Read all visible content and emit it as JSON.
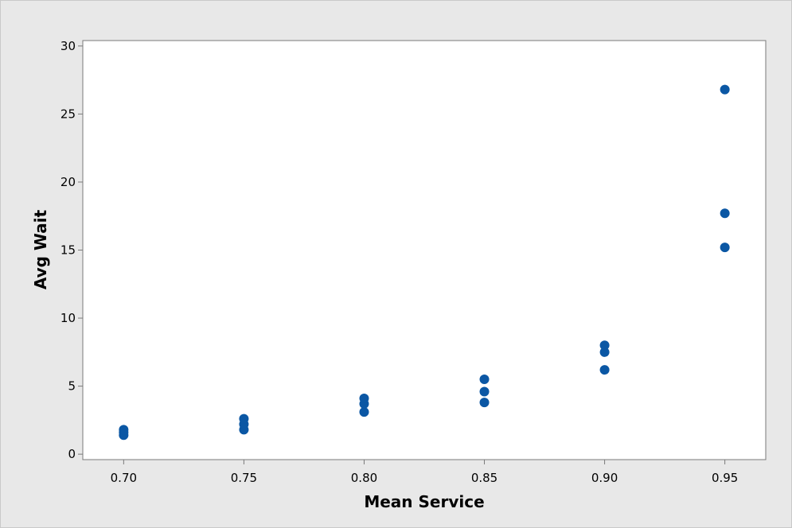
{
  "chart_data": {
    "type": "scatter",
    "title": "",
    "xlabel": "Mean Service",
    "ylabel": "Avg Wait",
    "xlim": [
      0.683,
      0.967
    ],
    "ylim": [
      -0.4,
      30.4
    ],
    "x_ticks": [
      "0.70",
      "0.75",
      "0.80",
      "0.85",
      "0.90",
      "0.95"
    ],
    "y_ticks": [
      "0",
      "5",
      "10",
      "15",
      "20",
      "25",
      "30"
    ],
    "grid": false,
    "legend": "none",
    "marker_color": "#0b57a4",
    "series": [
      {
        "points": [
          {
            "x": 0.7,
            "y": 1.4
          },
          {
            "x": 0.7,
            "y": 1.6
          },
          {
            "x": 0.7,
            "y": 1.8
          },
          {
            "x": 0.75,
            "y": 1.8
          },
          {
            "x": 0.75,
            "y": 2.2
          },
          {
            "x": 0.75,
            "y": 2.6
          },
          {
            "x": 0.8,
            "y": 3.1
          },
          {
            "x": 0.8,
            "y": 3.7
          },
          {
            "x": 0.8,
            "y": 4.1
          },
          {
            "x": 0.85,
            "y": 3.8
          },
          {
            "x": 0.85,
            "y": 4.6
          },
          {
            "x": 0.85,
            "y": 5.5
          },
          {
            "x": 0.9,
            "y": 6.2
          },
          {
            "x": 0.9,
            "y": 7.5
          },
          {
            "x": 0.9,
            "y": 8.0
          },
          {
            "x": 0.95,
            "y": 15.2
          },
          {
            "x": 0.95,
            "y": 17.7
          },
          {
            "x": 0.95,
            "y": 26.8
          }
        ]
      }
    ]
  }
}
